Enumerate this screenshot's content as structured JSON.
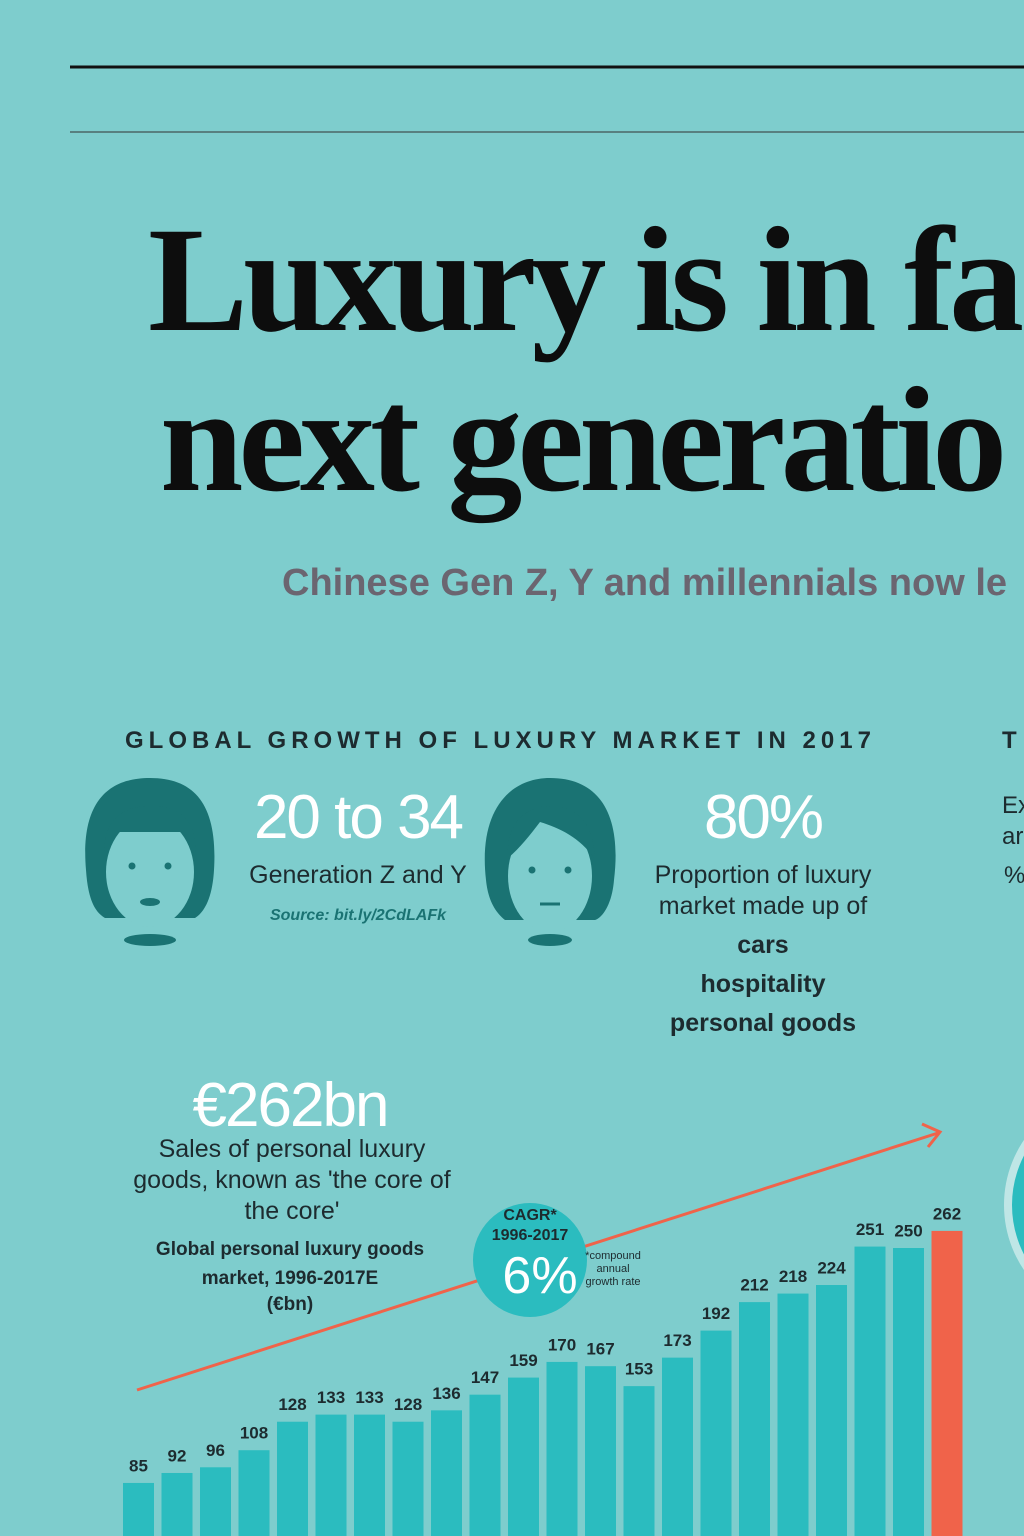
{
  "header": {
    "title_lines": [
      "Luxury is in fa",
      "next generatio"
    ],
    "subtitle": "Chinese Gen Z, Y and millennials now le"
  },
  "section": {
    "heading": "GLOBAL GROWTH OF LUXURY MARKET IN 2017",
    "next_heading": "T",
    "next_lines": [
      "Ex",
      "ar",
      "%"
    ]
  },
  "stats": [
    {
      "figure": "20 to 34",
      "label": "Generation Z and Y",
      "source": "Source: bit.ly/2CdLAFk"
    },
    {
      "figure": "80%",
      "label_lines": [
        "Proportion of luxury",
        "market made up of"
      ],
      "items": [
        "cars",
        "hospitality",
        "personal goods"
      ]
    }
  ],
  "sales": {
    "figure": "€262bn",
    "label_lines": [
      "Sales of personal luxury",
      "goods, known as 'the core of",
      "the core'"
    ]
  },
  "chart_data": {
    "type": "bar",
    "title_lines": [
      "Global personal luxury goods",
      "market, 1996-2017E",
      "(€bn)"
    ],
    "values": [
      85,
      92,
      96,
      108,
      128,
      133,
      133,
      128,
      136,
      147,
      159,
      170,
      167,
      153,
      173,
      192,
      212,
      218,
      224,
      251,
      250,
      262
    ],
    "colors": [
      "#2bbcbf",
      "#2bbcbf",
      "#2bbcbf",
      "#2bbcbf",
      "#2bbcbf",
      "#2bbcbf",
      "#2bbcbf",
      "#2bbcbf",
      "#2bbcbf",
      "#2bbcbf",
      "#2bbcbf",
      "#2bbcbf",
      "#2bbcbf",
      "#2bbcbf",
      "#2bbcbf",
      "#2bbcbf",
      "#2bbcbf",
      "#2bbcbf",
      "#2bbcbf",
      "#2bbcbf",
      "#2bbcbf",
      "#f0634a"
    ],
    "annotation": {
      "title": "CAGR*",
      "period": "1996-2017",
      "value": "6%",
      "note_lines": [
        "*compound",
        "annual",
        "growth rate"
      ]
    }
  }
}
